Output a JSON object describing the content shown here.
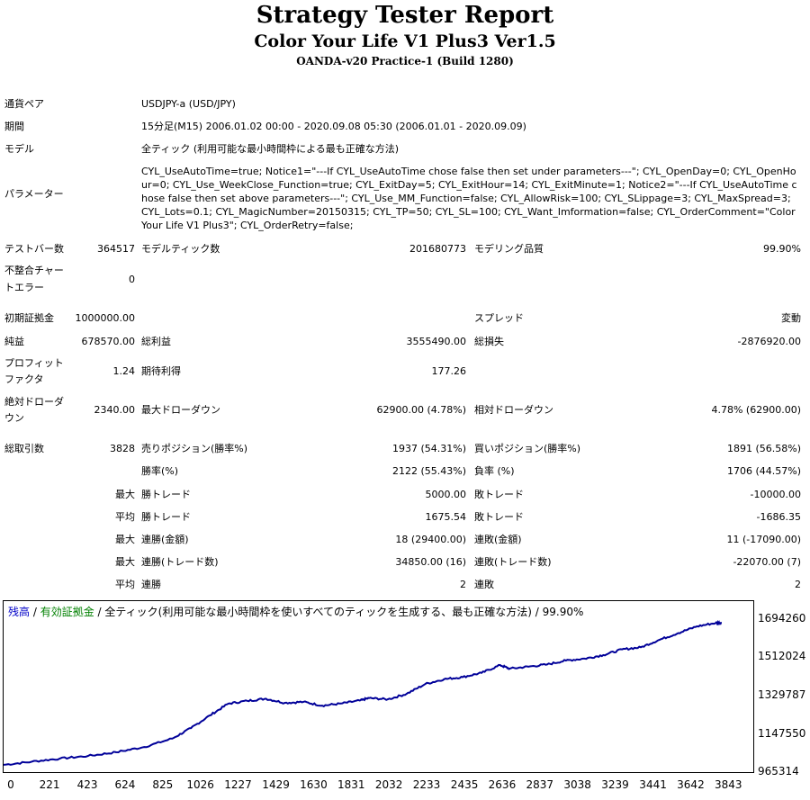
{
  "header": {
    "title": "Strategy Tester Report",
    "subtitle": "Color Your Life V1 Plus3 Ver1.5",
    "server": "OANDA-v20 Practice-1 (Build 1280)"
  },
  "info": {
    "symbol_label": "通貨ペア",
    "symbol_value": "USDJPY-a (USD/JPY)",
    "period_label": "期間",
    "period_value": "15分足(M15) 2006.01.02 00:00 - 2020.09.08 05:30 (2006.01.01 - 2020.09.09)",
    "model_label": "モデル",
    "model_value": "全ティック (利用可能な最小時間枠による最も正確な方法)",
    "params_label": "パラメーター",
    "params_value": "CYL_UseAutoTime=true; Notice1=\"---If CYL_UseAutoTime chose false then set under parameters---\"; CYL_OpenDay=0; CYL_OpenHour=0; CYL_Use_WeekClose_Function=true; CYL_ExitDay=5; CYL_ExitHour=14; CYL_ExitMinute=1; Notice2=\"---If CYL_UseAutoTime chose false then set above parameters---\"; CYL_Use_MM_Function=false; CYL_AllowRisk=100; CYL_SLippage=3; CYL_MaxSpread=3; CYL_Lots=0.1; CYL_MagicNumber=20150315; CYL_TP=50; CYL_SL=100; CYL_Want_Imformation=false; CYL_OrderComment=\"Color Your Life V1 Plus3\"; CYL_OrderRetry=false;"
  },
  "stats": {
    "bars_label": "テストバー数",
    "bars_value": "364517",
    "ticks_label": "モデルティック数",
    "ticks_value": "201680773",
    "quality_label": "モデリング品質",
    "quality_value": "99.90%",
    "mismatch_label_1": "不整合チャー",
    "mismatch_label_2": "トエラー",
    "mismatch_value": "0",
    "deposit_label": "初期証拠金",
    "deposit_value": "1000000.00",
    "spread_label": "スプレッド",
    "spread_value": "変動",
    "net_label": "純益",
    "net_value": "678570.00",
    "gross_profit_label": "総利益",
    "gross_profit_value": "3555490.00",
    "gross_loss_label": "総損失",
    "gross_loss_value": "-2876920.00",
    "pf_label_1": "プロフィット",
    "pf_label_2": "ファクタ",
    "pf_value": "1.24",
    "expected_label": "期待利得",
    "expected_value": "177.26",
    "abs_dd_label_1": "絶対ドローダ",
    "abs_dd_label_2": "ウン",
    "abs_dd_value": "2340.00",
    "max_dd_label": "最大ドローダウン",
    "max_dd_value": "62900.00 (4.78%)",
    "rel_dd_label": "相対ドローダウン",
    "rel_dd_value": "4.78% (62900.00)",
    "total_trades_label": "総取引数",
    "total_trades_value": "3828",
    "short_label": "売りポジション(勝率%)",
    "short_value": "1937 (54.31%)",
    "long_label": "買いポジション(勝率%)",
    "long_value": "1891 (56.58%)",
    "win_rate_label": "勝率(%)",
    "win_rate_value": "2122 (55.43%)",
    "loss_rate_label": "負率 (%)",
    "loss_rate_value": "1706 (44.57%)",
    "largest_prefix": "最大",
    "largest_win_label": "勝トレード",
    "largest_win_value": "5000.00",
    "largest_loss_label": "敗トレード",
    "largest_loss_value": "-10000.00",
    "average_prefix": "平均",
    "avg_win_label": "勝トレード",
    "avg_win_value": "1675.54",
    "avg_loss_label": "敗トレード",
    "avg_loss_value": "-1686.35",
    "max_prefix_1": "最大",
    "max_cons_wins_label": "連勝(金額)",
    "max_cons_wins_value": "18 (29400.00)",
    "max_cons_losses_label": "連敗(金額)",
    "max_cons_losses_value": "11 (-17090.00)",
    "max_prefix_2": "最大",
    "max_cons_profit_label": "連勝(トレード数)",
    "max_cons_profit_value": "34850.00 (16)",
    "max_cons_loss_label": "連敗(トレード数)",
    "max_cons_loss_value": "-22070.00 (7)",
    "avg_prefix_2": "平均",
    "avg_cons_wins_label": "連勝",
    "avg_cons_wins_value": "2",
    "avg_cons_losses_label": "連敗",
    "avg_cons_losses_value": "2"
  },
  "legend": {
    "balance": "残高",
    "sep1": " / ",
    "equity": "有効証拠金",
    "sep2": " / ",
    "rest": "全ティック(利用可能な最小時間枠を使いすべてのティックを生成する、最も正確な方法) / 99.90%"
  },
  "colors": {
    "balance": "#0000c8",
    "equity": "#008000",
    "line": "#000099"
  },
  "chart_data": {
    "type": "line",
    "ylim": [
      965314,
      1694260
    ],
    "xlim": [
      0,
      4000
    ],
    "yticks": [
      "1694260",
      "1512024",
      "1329787",
      "1147550",
      "965314"
    ],
    "xticks": [
      "0",
      "221",
      "423",
      "624",
      "825",
      "1026",
      "1227",
      "1429",
      "1630",
      "1831",
      "2032",
      "2233",
      "2435",
      "2636",
      "2837",
      "3038",
      "3239",
      "3441",
      "3642",
      "3843"
    ],
    "x": [
      0,
      150,
      300,
      450,
      600,
      750,
      900,
      1000,
      1100,
      1200,
      1300,
      1400,
      1500,
      1600,
      1700,
      1800,
      1900,
      1950,
      2050,
      2150,
      2250,
      2350,
      2450,
      2550,
      2650,
      2700,
      2800,
      2900,
      3000,
      3100,
      3200,
      3300,
      3400,
      3500,
      3600,
      3700,
      3800,
      3828
    ],
    "y": [
      1000000,
      1015000,
      1030000,
      1042000,
      1060000,
      1085000,
      1125000,
      1175000,
      1235000,
      1292000,
      1305000,
      1315000,
      1295000,
      1300000,
      1282000,
      1292000,
      1306000,
      1318000,
      1312000,
      1338000,
      1385000,
      1408000,
      1418000,
      1438000,
      1475000,
      1458000,
      1468000,
      1478000,
      1497000,
      1506000,
      1523000,
      1550000,
      1560000,
      1596000,
      1628000,
      1660000,
      1676000,
      1678000
    ]
  }
}
